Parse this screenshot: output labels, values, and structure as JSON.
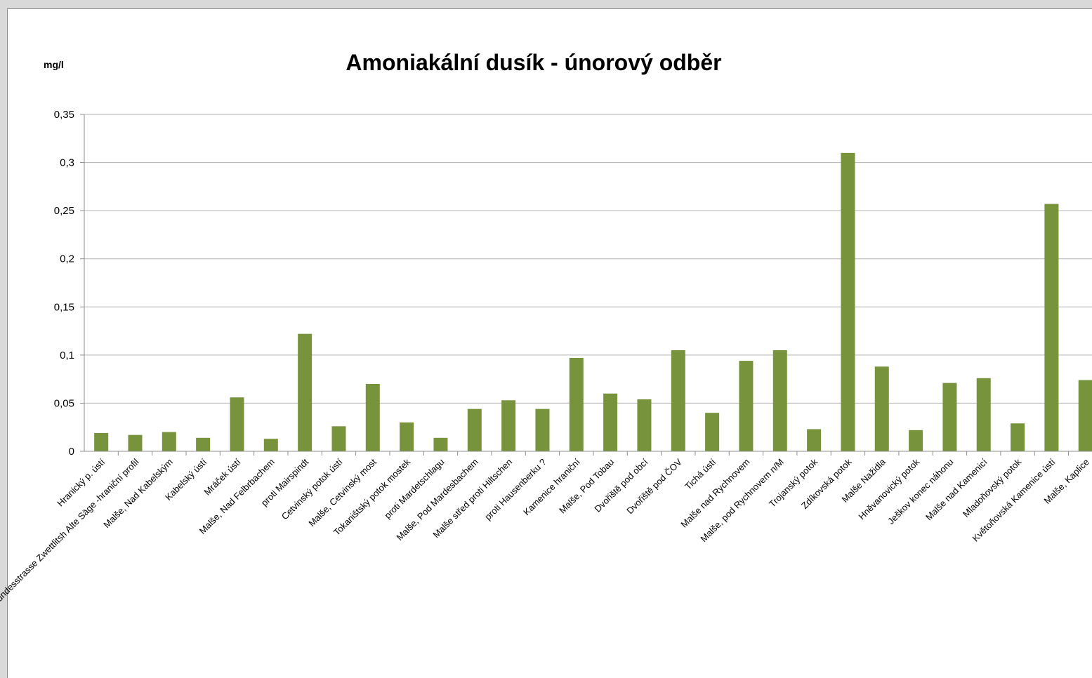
{
  "chart_data": {
    "type": "bar",
    "title": "Amoniakální dusík - únorový odběr",
    "ylabel": "mg/l",
    "xlabel": "",
    "ylim": [
      0,
      0.35
    ],
    "yticks": [
      {
        "value": 0,
        "label": "0"
      },
      {
        "value": 0.05,
        "label": "0,05"
      },
      {
        "value": 0.1,
        "label": "0,1"
      },
      {
        "value": 0.15,
        "label": "0,15"
      },
      {
        "value": 0.2,
        "label": "0,2"
      },
      {
        "value": 0.25,
        "label": "0,25"
      },
      {
        "value": 0.3,
        "label": "0,3"
      },
      {
        "value": 0.35,
        "label": "0,35"
      }
    ],
    "grid": true,
    "legend": "none",
    "bar_color": "#77933c",
    "categories": [
      "Hranický p. ústí",
      "Leopoldschlag Bundesstrasse Zwettlitsh Alte Säge -hraniční profil",
      "Malše, Nad Kabelským",
      "Kabelský ústí",
      "Mráček ústí",
      "Malše, Nad Felbrbachem",
      "proti Mairspindt",
      "Cetvinský potok ústí",
      "Malše, Cetvinský most",
      "Tokaništský potok mostek",
      "proti Mardetschlagu",
      "Malše, Pod Mardesbachem",
      "Malše střed proti Hiltschen",
      "proti Hausenberku ?",
      "Kamenice hraniční",
      "Malše, Pod Tobau",
      "Dvořiště pod obcí",
      "Dvořiště pod ČOV",
      "Tichá ústí",
      "Malše nad Rychnovem",
      "Malše, pod Rychnovem n/M",
      "Trojanský potok",
      "Zdíkovská potok",
      "Malše Nažidla",
      "Hněvanovický potok",
      "Ješkov konec náhonu",
      "Malše nad Kamenicí",
      "Mladoňovský potok",
      "Květoňovská Kamenice ústí",
      "Malše, Kaplice"
    ],
    "values": [
      0.019,
      0.017,
      0.02,
      0.014,
      0.056,
      0.013,
      0.122,
      0.026,
      0.07,
      0.03,
      0.014,
      0.044,
      0.053,
      0.044,
      0.097,
      0.06,
      0.054,
      0.105,
      0.04,
      0.094,
      0.105,
      0.023,
      0.31,
      0.088,
      0.022,
      0.071,
      0.076,
      0.029,
      0.257,
      0.074
    ]
  }
}
